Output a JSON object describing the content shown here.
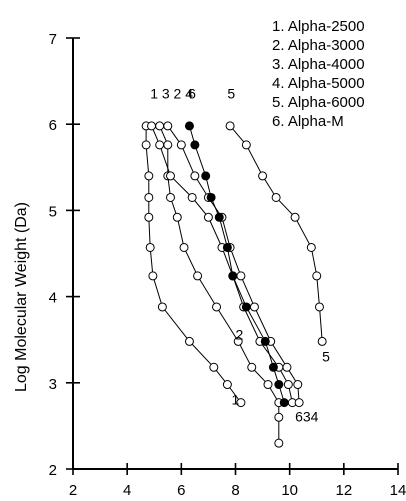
{
  "chart_data": {
    "type": "line",
    "title": "",
    "xlabel": "",
    "ylabel": "Log Molecular Weight (Da)",
    "xlim": [
      2,
      14
    ],
    "ylim": [
      2,
      7
    ],
    "xticks": [
      2,
      4,
      6,
      8,
      10,
      12,
      14
    ],
    "yticks": [
      2,
      3,
      4,
      5,
      6,
      7
    ],
    "grid": false,
    "legend": {
      "placement": "top-right",
      "entries": [
        "1. Alpha-2500",
        "2. Alpha-3000",
        "3. Alpha-4000",
        "4. Alpha-5000",
        "5. Alpha-6000",
        "6. Alpha-M"
      ]
    },
    "series": [
      {
        "label": "1",
        "marker": "open",
        "points": [
          [
            4.7,
            5.98
          ],
          [
            4.7,
            5.76
          ],
          [
            4.8,
            5.4
          ],
          [
            4.8,
            5.15
          ],
          [
            4.8,
            4.92
          ],
          [
            4.85,
            4.57
          ],
          [
            4.95,
            4.24
          ],
          [
            5.3,
            3.88
          ],
          [
            6.3,
            3.48
          ],
          [
            7.2,
            3.18
          ],
          [
            7.7,
            2.98
          ],
          [
            8.2,
            2.77
          ]
        ]
      },
      {
        "label": "2",
        "marker": "open",
        "points": [
          [
            5.2,
            5.98
          ],
          [
            5.5,
            5.76
          ],
          [
            5.5,
            5.4
          ],
          [
            5.6,
            5.15
          ],
          [
            5.85,
            4.92
          ],
          [
            6.1,
            4.57
          ],
          [
            6.6,
            4.24
          ],
          [
            7.3,
            3.88
          ],
          [
            8.1,
            3.48
          ],
          [
            8.6,
            3.18
          ],
          [
            9.2,
            2.98
          ],
          [
            9.6,
            2.77
          ],
          [
            9.6,
            2.6
          ],
          [
            9.6,
            2.3
          ]
        ]
      },
      {
        "label": "3",
        "marker": "open",
        "points": [
          [
            4.9,
            5.98
          ],
          [
            5.2,
            5.76
          ],
          [
            5.6,
            5.4
          ],
          [
            6.4,
            5.15
          ],
          [
            7.0,
            4.92
          ],
          [
            7.5,
            4.57
          ],
          [
            7.9,
            4.24
          ],
          [
            8.3,
            3.88
          ],
          [
            8.9,
            3.48
          ],
          [
            9.6,
            3.18
          ],
          [
            9.95,
            2.98
          ],
          [
            10.1,
            2.77
          ]
        ]
      },
      {
        "label": "4",
        "marker": "open",
        "points": [
          [
            5.5,
            5.98
          ],
          [
            6.0,
            5.76
          ],
          [
            6.5,
            5.4
          ],
          [
            7.0,
            5.15
          ],
          [
            7.5,
            4.92
          ],
          [
            7.8,
            4.57
          ],
          [
            8.2,
            4.24
          ],
          [
            8.7,
            3.88
          ],
          [
            9.3,
            3.48
          ],
          [
            9.9,
            3.18
          ],
          [
            10.3,
            2.98
          ],
          [
            10.35,
            2.77
          ]
        ]
      },
      {
        "label": "5",
        "marker": "open",
        "points": [
          [
            7.8,
            5.98
          ],
          [
            8.4,
            5.76
          ],
          [
            9.0,
            5.4
          ],
          [
            9.5,
            5.15
          ],
          [
            10.2,
            4.92
          ],
          [
            10.8,
            4.57
          ],
          [
            11.0,
            4.24
          ],
          [
            11.1,
            3.88
          ],
          [
            11.2,
            3.48
          ]
        ]
      },
      {
        "label": "6",
        "marker": "filled",
        "points": [
          [
            6.3,
            5.98
          ],
          [
            6.5,
            5.76
          ],
          [
            6.9,
            5.4
          ],
          [
            7.1,
            5.15
          ],
          [
            7.4,
            4.92
          ],
          [
            7.7,
            4.57
          ],
          [
            7.9,
            4.24
          ],
          [
            8.4,
            3.88
          ],
          [
            9.1,
            3.48
          ],
          [
            9.4,
            3.18
          ],
          [
            9.6,
            2.98
          ],
          [
            9.8,
            2.77
          ]
        ]
      }
    ],
    "curve_labels": [
      {
        "text": "1 3 2 4",
        "x": 4.85,
        "y": 6.3
      },
      {
        "text": "6",
        "x": 6.25,
        "y": 6.3
      },
      {
        "text": "5",
        "x": 7.7,
        "y": 6.3
      },
      {
        "text": "2",
        "x": 8.0,
        "y": 3.5
      },
      {
        "text": "1",
        "x": 7.85,
        "y": 2.75
      },
      {
        "text": "634",
        "x": 10.2,
        "y": 2.55
      },
      {
        "text": "5",
        "x": 11.2,
        "y": 3.25
      }
    ]
  }
}
